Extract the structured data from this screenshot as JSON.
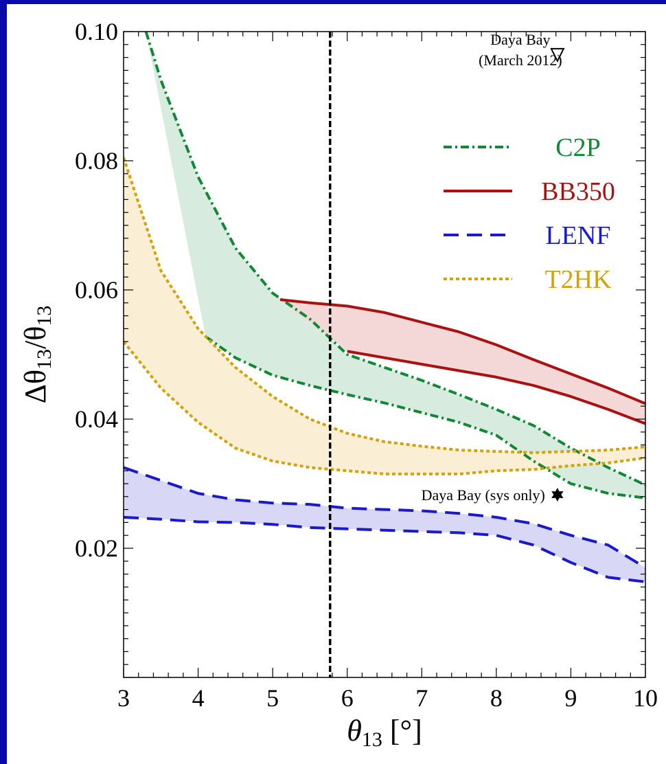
{
  "chart_data": {
    "type": "line",
    "xlabel_main": "θ",
    "xlabel_sub": "13",
    "xlabel_unit": " [°]",
    "ylabel_delta": "Δθ",
    "ylabel_sub1": "13",
    "ylabel_slash": "/θ",
    "ylabel_sub2": "13",
    "xlim": [
      3,
      10
    ],
    "ylim": [
      0,
      0.1
    ],
    "xticks": [
      "3",
      "4",
      "5",
      "6",
      "7",
      "8",
      "9",
      "10"
    ],
    "yticks": [
      "0.02",
      "0.04",
      "0.06",
      "0.08",
      "0.10"
    ],
    "grid": false,
    "legend_position": "top-right",
    "vline_x": 5.77,
    "series": [
      {
        "name": "C2P",
        "color": "#118833",
        "fill": "#d7ecdf",
        "dash": "dashdot",
        "upper": [
          [
            3.3,
            0.1
          ],
          [
            3.5,
            0.0925
          ],
          [
            4.0,
            0.0775
          ],
          [
            4.5,
            0.0665
          ],
          [
            5.0,
            0.0595
          ],
          [
            5.5,
            0.0555
          ],
          [
            6.0,
            0.05
          ],
          [
            6.5,
            0.048
          ],
          [
            7.0,
            0.046
          ],
          [
            7.5,
            0.0438
          ],
          [
            8.0,
            0.0415
          ],
          [
            8.5,
            0.039
          ],
          [
            9.0,
            0.0355
          ],
          [
            9.5,
            0.0325
          ],
          [
            10.0,
            0.0298
          ]
        ],
        "lower": [
          [
            4.1,
            0.0528
          ],
          [
            4.5,
            0.0495
          ],
          [
            5.0,
            0.0468
          ],
          [
            5.5,
            0.0452
          ],
          [
            6.0,
            0.0438
          ],
          [
            6.5,
            0.0425
          ],
          [
            7.0,
            0.041
          ],
          [
            7.5,
            0.0395
          ],
          [
            8.0,
            0.0375
          ],
          [
            8.5,
            0.0335
          ],
          [
            9.0,
            0.03
          ],
          [
            9.5,
            0.0285
          ],
          [
            10.0,
            0.0278
          ]
        ]
      },
      {
        "name": "BB350",
        "color": "#aa1111",
        "fill": "#f4d7d7",
        "dash": "solid",
        "upper": [
          [
            5.1,
            0.0585
          ],
          [
            5.5,
            0.058
          ],
          [
            6.0,
            0.0575
          ],
          [
            6.5,
            0.0565
          ],
          [
            7.0,
            0.055
          ],
          [
            7.5,
            0.0535
          ],
          [
            8.0,
            0.0515
          ],
          [
            8.5,
            0.0492
          ],
          [
            9.0,
            0.047
          ],
          [
            9.5,
            0.0448
          ],
          [
            10.0,
            0.0424
          ]
        ],
        "lower": [
          [
            6.0,
            0.0505
          ],
          [
            6.5,
            0.0495
          ],
          [
            7.0,
            0.0485
          ],
          [
            7.5,
            0.0475
          ],
          [
            8.0,
            0.0465
          ],
          [
            8.5,
            0.0452
          ],
          [
            9.0,
            0.0435
          ],
          [
            9.5,
            0.0415
          ],
          [
            10.0,
            0.0393
          ]
        ]
      },
      {
        "name": "LENF",
        "color": "#1a1acc",
        "fill": "#d8d8f6",
        "dash": "dashed",
        "upper": [
          [
            3.0,
            0.0325
          ],
          [
            3.5,
            0.0305
          ],
          [
            4.0,
            0.0285
          ],
          [
            4.5,
            0.0275
          ],
          [
            5.0,
            0.027
          ],
          [
            5.5,
            0.0268
          ],
          [
            6.0,
            0.0262
          ],
          [
            6.5,
            0.026
          ],
          [
            7.0,
            0.0258
          ],
          [
            7.5,
            0.0254
          ],
          [
            8.0,
            0.0248
          ],
          [
            8.5,
            0.0238
          ],
          [
            9.0,
            0.022
          ],
          [
            9.5,
            0.0205
          ],
          [
            10.0,
            0.017
          ]
        ],
        "lower": [
          [
            3.0,
            0.0248
          ],
          [
            3.5,
            0.0245
          ],
          [
            4.0,
            0.0241
          ],
          [
            4.5,
            0.024
          ],
          [
            5.0,
            0.0237
          ],
          [
            5.5,
            0.0232
          ],
          [
            6.0,
            0.023
          ],
          [
            6.5,
            0.0228
          ],
          [
            7.0,
            0.0226
          ],
          [
            7.5,
            0.0224
          ],
          [
            8.0,
            0.022
          ],
          [
            8.5,
            0.0205
          ],
          [
            9.0,
            0.0178
          ],
          [
            9.5,
            0.0155
          ],
          [
            10.0,
            0.0148
          ]
        ]
      },
      {
        "name": "T2HK",
        "color": "#d4a20a",
        "fill": "#faefd4",
        "dash": "dotted",
        "upper": [
          [
            3.0,
            0.0805
          ],
          [
            3.5,
            0.063
          ],
          [
            4.0,
            0.054
          ],
          [
            4.5,
            0.048
          ],
          [
            5.0,
            0.0435
          ],
          [
            5.5,
            0.04
          ],
          [
            6.0,
            0.0378
          ],
          [
            6.5,
            0.0365
          ],
          [
            7.0,
            0.0358
          ],
          [
            7.5,
            0.0352
          ],
          [
            8.0,
            0.035
          ],
          [
            8.5,
            0.0348
          ],
          [
            9.0,
            0.035
          ],
          [
            9.5,
            0.0352
          ],
          [
            10.0,
            0.0357
          ]
        ],
        "lower": [
          [
            3.0,
            0.052
          ],
          [
            3.5,
            0.0448
          ],
          [
            4.0,
            0.0395
          ],
          [
            4.5,
            0.0355
          ],
          [
            5.0,
            0.0335
          ],
          [
            5.5,
            0.0325
          ],
          [
            6.0,
            0.032
          ],
          [
            6.5,
            0.0315
          ],
          [
            7.0,
            0.0315
          ],
          [
            7.5,
            0.0315
          ],
          [
            8.0,
            0.032
          ],
          [
            8.5,
            0.0322
          ],
          [
            9.0,
            0.0328
          ],
          [
            9.5,
            0.0332
          ],
          [
            10.0,
            0.034
          ]
        ]
      }
    ],
    "annotations": [
      {
        "text_lines": [
          "Daya Bay",
          "(March 2012)"
        ],
        "marker": "triangle-down",
        "x": 8.82,
        "y": 0.0965
      },
      {
        "text_lines": [
          "Daya Bay (sys only)"
        ],
        "marker": "star",
        "x": 8.82,
        "y": 0.0283
      }
    ]
  }
}
